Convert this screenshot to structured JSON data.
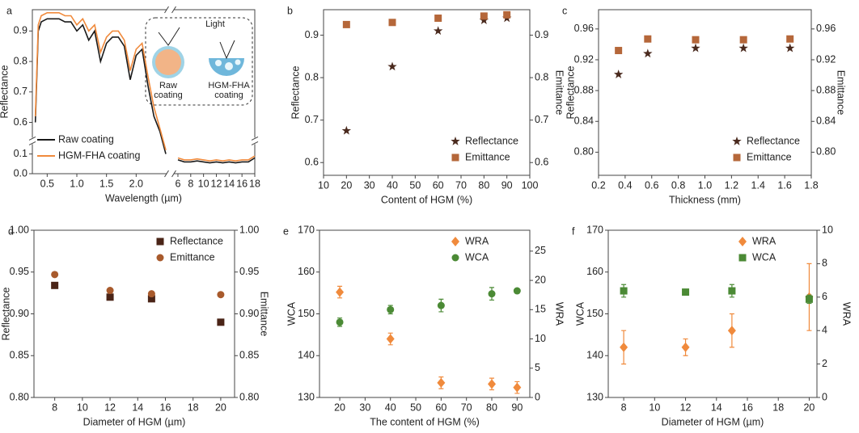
{
  "chart_data": [
    {
      "type": "line",
      "panel": "a",
      "xlabel": "Wavelength (µm)",
      "ylabel": "Reflectance",
      "xlim": [
        0.25,
        18
      ],
      "xbreak": [
        2.5,
        5.5
      ],
      "ylim": [
        0,
        0.97
      ],
      "ybreak": [
        0.15,
        0.55
      ],
      "xticks": [
        0.5,
        {
          "value": 1,
          "label": "1.0"
        },
        1.5,
        {
          "value": 2,
          "label": "2.0"
        },
        6,
        8,
        10,
        12,
        14,
        16,
        18
      ],
      "yticks": [
        {
          "value": 0,
          "label": "0.0"
        },
        0.1,
        0.6,
        0.7,
        0.8,
        0.9
      ],
      "x": [
        0.3,
        0.35,
        0.4,
        0.5,
        0.6,
        0.7,
        0.8,
        0.9,
        1.0,
        1.1,
        1.2,
        1.3,
        1.4,
        1.5,
        1.6,
        1.7,
        1.8,
        1.9,
        2.0,
        2.1,
        2.2,
        2.3,
        2.4,
        2.5,
        6,
        7,
        8,
        9,
        10,
        11,
        12,
        13,
        14,
        15,
        16,
        17,
        18
      ],
      "series": [
        {
          "name": "Raw coating",
          "color": "#1a1a1a",
          "values": [
            0.6,
            0.9,
            0.93,
            0.94,
            0.94,
            0.94,
            0.93,
            0.93,
            0.9,
            0.92,
            0.87,
            0.9,
            0.8,
            0.86,
            0.88,
            0.88,
            0.85,
            0.74,
            0.82,
            0.84,
            0.72,
            0.62,
            0.57,
            0.1,
            0.07,
            0.06,
            0.06,
            0.065,
            0.06,
            0.055,
            0.06,
            0.055,
            0.06,
            0.055,
            0.06,
            0.06,
            0.08
          ]
        },
        {
          "name": "HGM-FHA coating",
          "color": "#f08a3c",
          "values": [
            0.62,
            0.92,
            0.95,
            0.96,
            0.96,
            0.96,
            0.95,
            0.95,
            0.92,
            0.94,
            0.9,
            0.92,
            0.83,
            0.88,
            0.9,
            0.9,
            0.87,
            0.77,
            0.84,
            0.86,
            0.75,
            0.65,
            0.58,
            0.12,
            0.08,
            0.07,
            0.07,
            0.075,
            0.07,
            0.065,
            0.07,
            0.065,
            0.07,
            0.065,
            0.07,
            0.07,
            0.09
          ]
        }
      ],
      "legend": "lower left",
      "inset_labels": [
        "Light",
        "Raw coating",
        "HGM-FHA coating"
      ]
    },
    {
      "type": "scatter",
      "panel": "b",
      "xlabel": "Content of HGM (%)",
      "ylabel": "Reflectance",
      "y2label": "Emittance",
      "xlim": [
        10,
        100
      ],
      "xticks": [
        10,
        20,
        30,
        40,
        50,
        60,
        70,
        80,
        90,
        100
      ],
      "ylim": [
        0.57,
        0.96
      ],
      "yticks": [
        0.6,
        0.7,
        0.8,
        0.9
      ],
      "y2lim": [
        0.57,
        0.96
      ],
      "y2ticks": [
        0.6,
        0.7,
        0.8,
        0.9
      ],
      "x": [
        20,
        40,
        60,
        80,
        90
      ],
      "series": [
        {
          "name": "Reflectance",
          "color": "#4a2a1e",
          "marker": "star",
          "values": [
            0.675,
            0.826,
            0.91,
            0.935,
            0.94
          ]
        },
        {
          "name": "Emittance",
          "color": "#b5673a",
          "marker": "square",
          "axis": "y2",
          "values": [
            0.925,
            0.93,
            0.94,
            0.945,
            0.948
          ]
        }
      ],
      "legend": "lower right"
    },
    {
      "type": "scatter",
      "panel": "c",
      "xlabel": "Thickness (mm)",
      "ylabel": "Reflectance",
      "y2label": "Emittance",
      "xlim": [
        0.2,
        1.8
      ],
      "xticks": [
        0.2,
        0.4,
        0.6,
        0.8,
        {
          "value": 1,
          "label": "1.0"
        },
        1.2,
        1.4,
        1.6,
        1.8
      ],
      "ylim": [
        0.77,
        0.985
      ],
      "yticks": [
        {
          "value": 0.8,
          "label": "0.80"
        },
        0.84,
        0.88,
        0.92,
        0.96
      ],
      "y2lim": [
        0.77,
        0.985
      ],
      "y2ticks": [
        {
          "value": 0.8,
          "label": "0.80"
        },
        0.84,
        0.88,
        0.92,
        0.96
      ],
      "x": [
        0.35,
        0.57,
        0.93,
        1.29,
        1.64
      ],
      "series": [
        {
          "name": "Reflectance",
          "color": "#4a2a1e",
          "marker": "star",
          "values": [
            0.901,
            0.928,
            0.935,
            0.935,
            0.935
          ]
        },
        {
          "name": "Emittance",
          "color": "#b5673a",
          "marker": "square",
          "axis": "y2",
          "values": [
            0.932,
            0.947,
            0.946,
            0.946,
            0.947
          ]
        }
      ],
      "legend": "lower right"
    },
    {
      "type": "scatter",
      "panel": "d",
      "xlabel": "Diameter of HGM (µm)",
      "ylabel": "Reflectance",
      "y2label": "Emittance",
      "xlim": [
        6.5,
        21
      ],
      "xticks": [
        8,
        10,
        12,
        14,
        16,
        18,
        20
      ],
      "ylim": [
        0.8,
        1
      ],
      "yticks": [
        {
          "value": 0.8,
          "label": "0.80"
        },
        0.85,
        {
          "value": 0.9,
          "label": "0.90"
        },
        0.95,
        {
          "value": 1,
          "label": "1.00"
        }
      ],
      "y2lim": [
        0.8,
        1
      ],
      "y2ticks": [
        {
          "value": 0.8,
          "label": "0.80"
        },
        0.85,
        {
          "value": 0.9,
          "label": "0.90"
        },
        0.95,
        {
          "value": 1,
          "label": "1.00"
        }
      ],
      "x": [
        8,
        12,
        15,
        20
      ],
      "series": [
        {
          "name": "Reflectance",
          "color": "#4a2417",
          "marker": "square",
          "values": [
            0.934,
            0.92,
            0.918,
            0.89
          ]
        },
        {
          "name": "Emittance",
          "color": "#a85a2c",
          "marker": "circle",
          "axis": "y2",
          "values": [
            0.947,
            0.928,
            0.924,
            0.923
          ]
        }
      ],
      "legend": "upper right"
    },
    {
      "type": "scatter",
      "panel": "e",
      "xlabel": "The content of HGM (%)",
      "ylabel": "WCA",
      "y2label": "WRA",
      "xlim": [
        12,
        95
      ],
      "xticks": [
        20,
        30,
        40,
        50,
        60,
        70,
        80,
        90
      ],
      "ylim": [
        130,
        170
      ],
      "yticks": [
        130,
        140,
        150,
        160,
        170
      ],
      "y2lim": [
        0,
        28.57
      ],
      "y2ticks": [
        0,
        5,
        10,
        15,
        20,
        25
      ],
      "x": [
        20,
        40,
        60,
        80,
        90
      ],
      "series": [
        {
          "name": "WRA",
          "color": "#f08a3c",
          "marker": "diamond",
          "axis": "y2",
          "values": [
            18,
            10,
            2.5,
            2.3,
            1.7
          ],
          "errors": [
            1,
            1,
            1,
            1,
            1
          ]
        },
        {
          "name": "WCA",
          "color": "#4b8a35",
          "marker": "circle",
          "values": [
            148,
            151,
            152,
            154.8,
            155.5
          ],
          "errors": [
            1,
            1,
            1.5,
            1.5,
            0.5
          ]
        }
      ],
      "legend": "upper right"
    },
    {
      "type": "scatter",
      "panel": "f",
      "xlabel": "Diameter of HGM (µm)",
      "ylabel": "WCA",
      "y2label": "WRA",
      "xlim": [
        7,
        20.5
      ],
      "xticks": [
        8,
        10,
        12,
        14,
        16,
        18,
        20
      ],
      "ylim": [
        130,
        170
      ],
      "yticks": [
        130,
        140,
        150,
        160,
        170
      ],
      "y2lim": [
        0,
        10
      ],
      "y2ticks": [
        0,
        2,
        4,
        6,
        8,
        10
      ],
      "x": [
        8,
        12,
        15,
        20
      ],
      "series": [
        {
          "name": "WRA",
          "color": "#f08a3c",
          "marker": "diamond",
          "axis": "y2",
          "values": [
            3,
            3,
            4,
            6
          ],
          "errors": [
            1,
            0.5,
            1,
            2
          ]
        },
        {
          "name": "WCA",
          "color": "#4b8a35",
          "marker": "square",
          "values": [
            155.5,
            155.2,
            155.5,
            153.5
          ],
          "errors": [
            1.5,
            0.5,
            1.5,
            1
          ]
        }
      ],
      "legend": "upper right"
    }
  ]
}
